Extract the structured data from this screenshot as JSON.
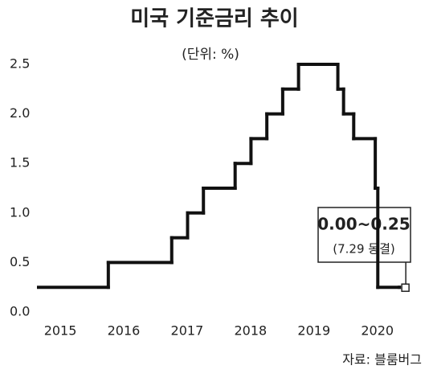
{
  "chart_data": {
    "type": "step",
    "title": "미국 기준금리 추이",
    "subtitle": "(단위: %)",
    "x": [
      2014.86,
      2015.96,
      2016.96,
      2017.21,
      2017.46,
      2017.96,
      2018.21,
      2018.46,
      2018.71,
      2018.96,
      2019.58,
      2019.67,
      2019.83,
      2020.17,
      2020.21,
      2020.55
    ],
    "series": [
      {
        "name": "기준금리",
        "color": "#111111",
        "values": [
          0.25,
          0.5,
          0.75,
          1.0,
          1.25,
          1.5,
          1.75,
          2.0,
          2.25,
          2.5,
          2.25,
          2.0,
          1.75,
          1.25,
          0.25,
          0.25
        ]
      }
    ],
    "xlim": [
      2014.86,
      2020.84
    ],
    "xticks": [
      2015,
      2016,
      2017,
      2018,
      2019,
      2020
    ],
    "ylim": [
      0,
      2.5
    ],
    "yticks": [
      {
        "value": 0,
        "label": "0.0"
      },
      0.5,
      {
        "value": 1,
        "label": "1.0"
      },
      1.5,
      {
        "value": 2,
        "label": "2.0"
      },
      2.5
    ],
    "annotation": {
      "label": "0.00~0.25",
      "note": "(7.29 동결)"
    },
    "source": "자료: 블룸버그"
  }
}
